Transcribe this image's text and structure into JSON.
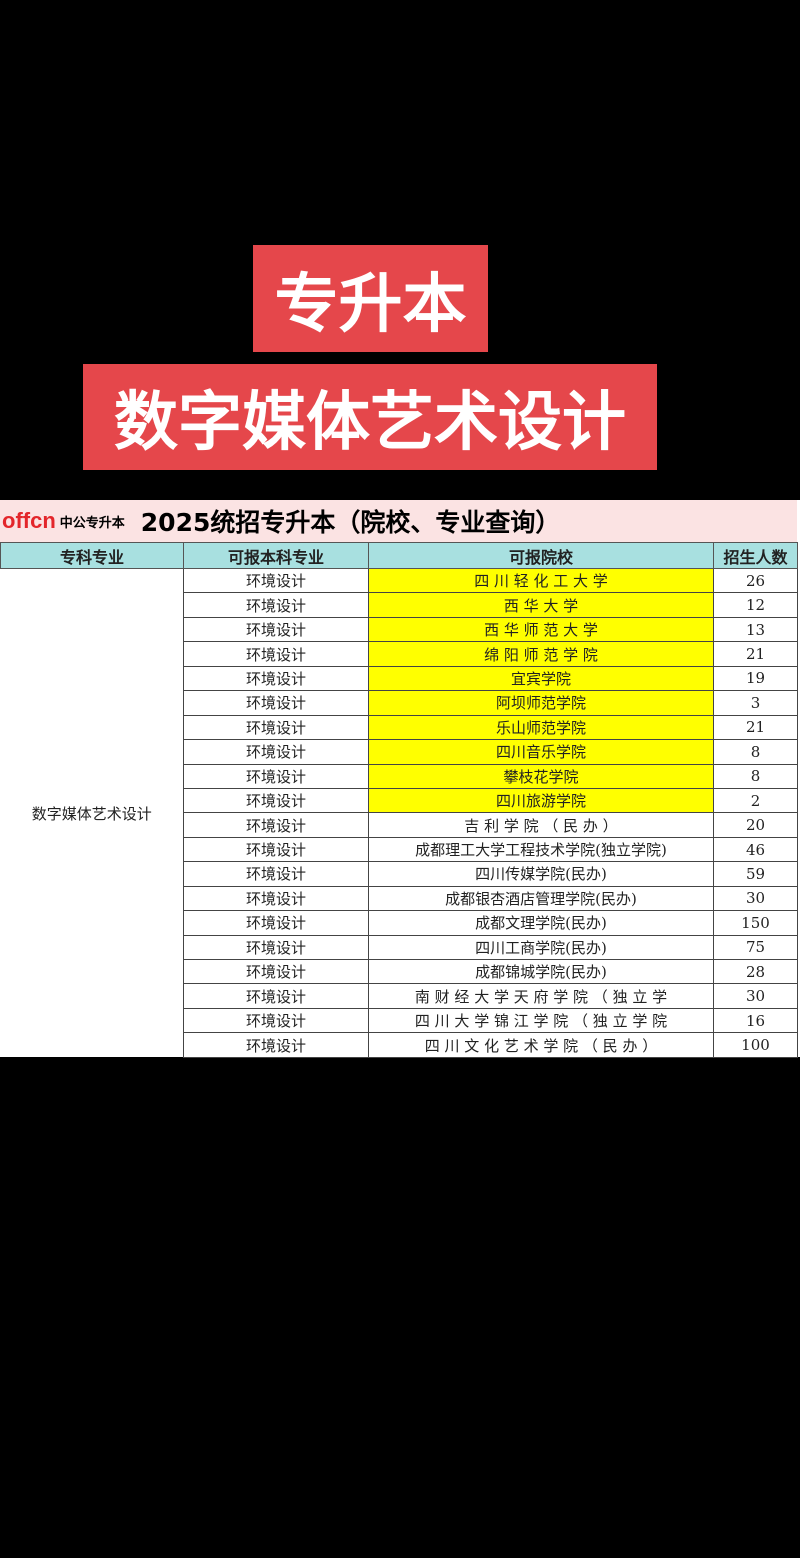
{
  "banner": {
    "line1": "专升本",
    "line2": "数字媒体艺术设计"
  },
  "sheet": {
    "logo": "offcn",
    "logo_sub": "中公专升本",
    "title": "2025统招专升本（院校、专业查询）",
    "headers": [
      "专科专业",
      "可报本科专业",
      "可报院校",
      "招生人数"
    ],
    "major": "数字媒体艺术设计",
    "highlight_color": "#ffff00",
    "rows": [
      {
        "major": "环境设计",
        "school": "四 川 轻 化 工 大 学",
        "count": "26",
        "hl": true
      },
      {
        "major": "环境设计",
        "school": "西 华 大 学",
        "count": "12",
        "hl": true
      },
      {
        "major": "环境设计",
        "school": "西 华 师 范 大 学",
        "count": "13",
        "hl": true
      },
      {
        "major": "环境设计",
        "school": "绵 阳 师 范 学 院",
        "count": "21",
        "hl": true
      },
      {
        "major": "环境设计",
        "school": "宜宾学院",
        "count": "19",
        "hl": true
      },
      {
        "major": "环境设计",
        "school": "阿坝师范学院",
        "count": "3",
        "hl": true
      },
      {
        "major": "环境设计",
        "school": "乐山师范学院",
        "count": "21",
        "hl": true
      },
      {
        "major": "环境设计",
        "school": "四川音乐学院",
        "count": "8",
        "hl": true
      },
      {
        "major": "环境设计",
        "school": "攀枝花学院",
        "count": "8",
        "hl": true
      },
      {
        "major": "环境设计",
        "school": "四川旅游学院",
        "count": "2",
        "hl": true
      },
      {
        "major": "环境设计",
        "school": "吉 利 学 院 （ 民 办 ）",
        "count": "20",
        "hl": false
      },
      {
        "major": "环境设计",
        "school": "成都理工大学工程技术学院(独立学院)",
        "count": "46",
        "hl": false
      },
      {
        "major": "环境设计",
        "school": "四川传媒学院(民办)",
        "count": "59",
        "hl": false
      },
      {
        "major": "环境设计",
        "school": "成都银杏酒店管理学院(民办)",
        "count": "30",
        "hl": false
      },
      {
        "major": "环境设计",
        "school": "成都文理学院(民办)",
        "count": "150",
        "hl": false
      },
      {
        "major": "环境设计",
        "school": "四川工商学院(民办)",
        "count": "75",
        "hl": false
      },
      {
        "major": "环境设计",
        "school": "成都锦城学院(民办)",
        "count": "28",
        "hl": false
      },
      {
        "major": "环境设计",
        "school": "南 财 经 大 学 天 府 学 院 （ 独 立 学",
        "count": "30",
        "hl": false
      },
      {
        "major": "环境设计",
        "school": "四 川 大 学 锦 江 学 院 （ 独 立 学 院",
        "count": "16",
        "hl": false
      },
      {
        "major": "环境设计",
        "school": "四 川 文 化 艺 术 学 院 （ 民 办 ）",
        "count": "100",
        "hl": false
      }
    ]
  }
}
